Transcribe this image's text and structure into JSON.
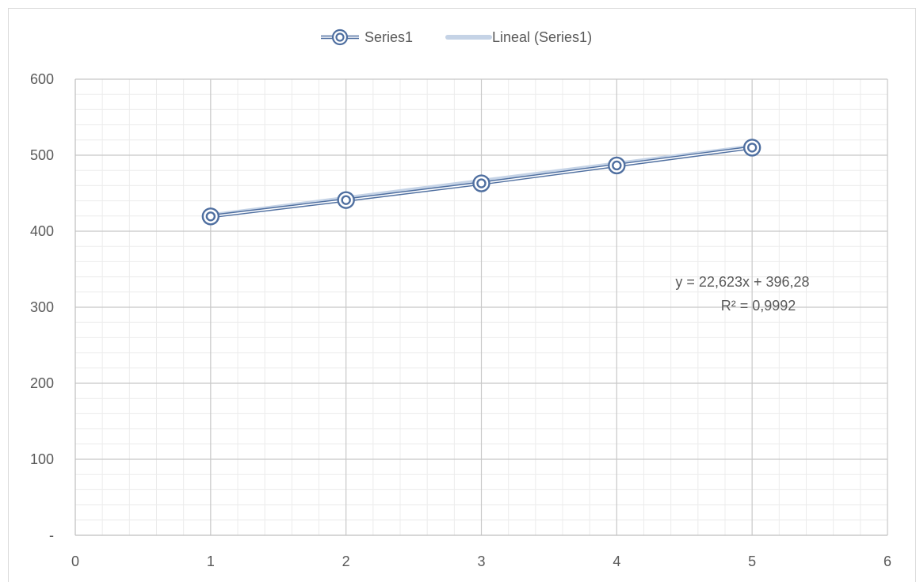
{
  "chart_data": {
    "type": "scatter",
    "title": "",
    "xlabel": "",
    "ylabel": "",
    "xlim": [
      0,
      6
    ],
    "ylim": [
      0,
      600
    ],
    "x_ticks": [
      "0",
      "1",
      "2",
      "3",
      "4",
      "5",
      "6"
    ],
    "y_ticks": [
      "-",
      "100",
      "200",
      "300",
      "400",
      "500",
      "600"
    ],
    "series": [
      {
        "name": "Series1",
        "x": [
          1,
          2,
          3,
          4,
          5
        ],
        "y": [
          419.5,
          441,
          463,
          486.5,
          510
        ],
        "color": "#4f6fa0",
        "marker": "double-circle",
        "line": true
      }
    ],
    "trendline": {
      "name": "Lineal (Series1)",
      "type": "linear",
      "slope": 22.623,
      "intercept": 396.28,
      "x_range": [
        1,
        5
      ],
      "color": "#c5d3e6",
      "equation_label": "y = 22,623x + 396,28",
      "r2_label": "R² = 0,9992"
    },
    "grid": {
      "major": true,
      "minor": true
    },
    "legend": {
      "position": "top",
      "items": [
        "Series1",
        "Lineal (Series1)"
      ]
    }
  }
}
